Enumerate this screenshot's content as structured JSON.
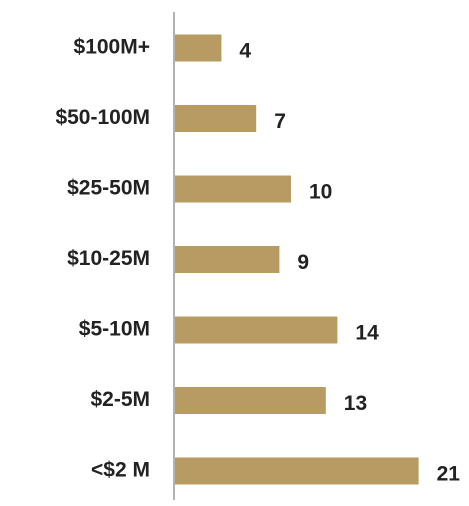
{
  "chart_data": {
    "type": "bar",
    "orientation": "horizontal",
    "categories": [
      "$100M+",
      "$50-100M",
      "$25-50M",
      "$10-25M",
      "$5-10M",
      "$2-5M",
      "<$2 M"
    ],
    "values": [
      4,
      7,
      10,
      9,
      14,
      13,
      21
    ],
    "bar_color": "#b89b63",
    "axis_color": "#999999",
    "grid": false,
    "legend": "none"
  }
}
